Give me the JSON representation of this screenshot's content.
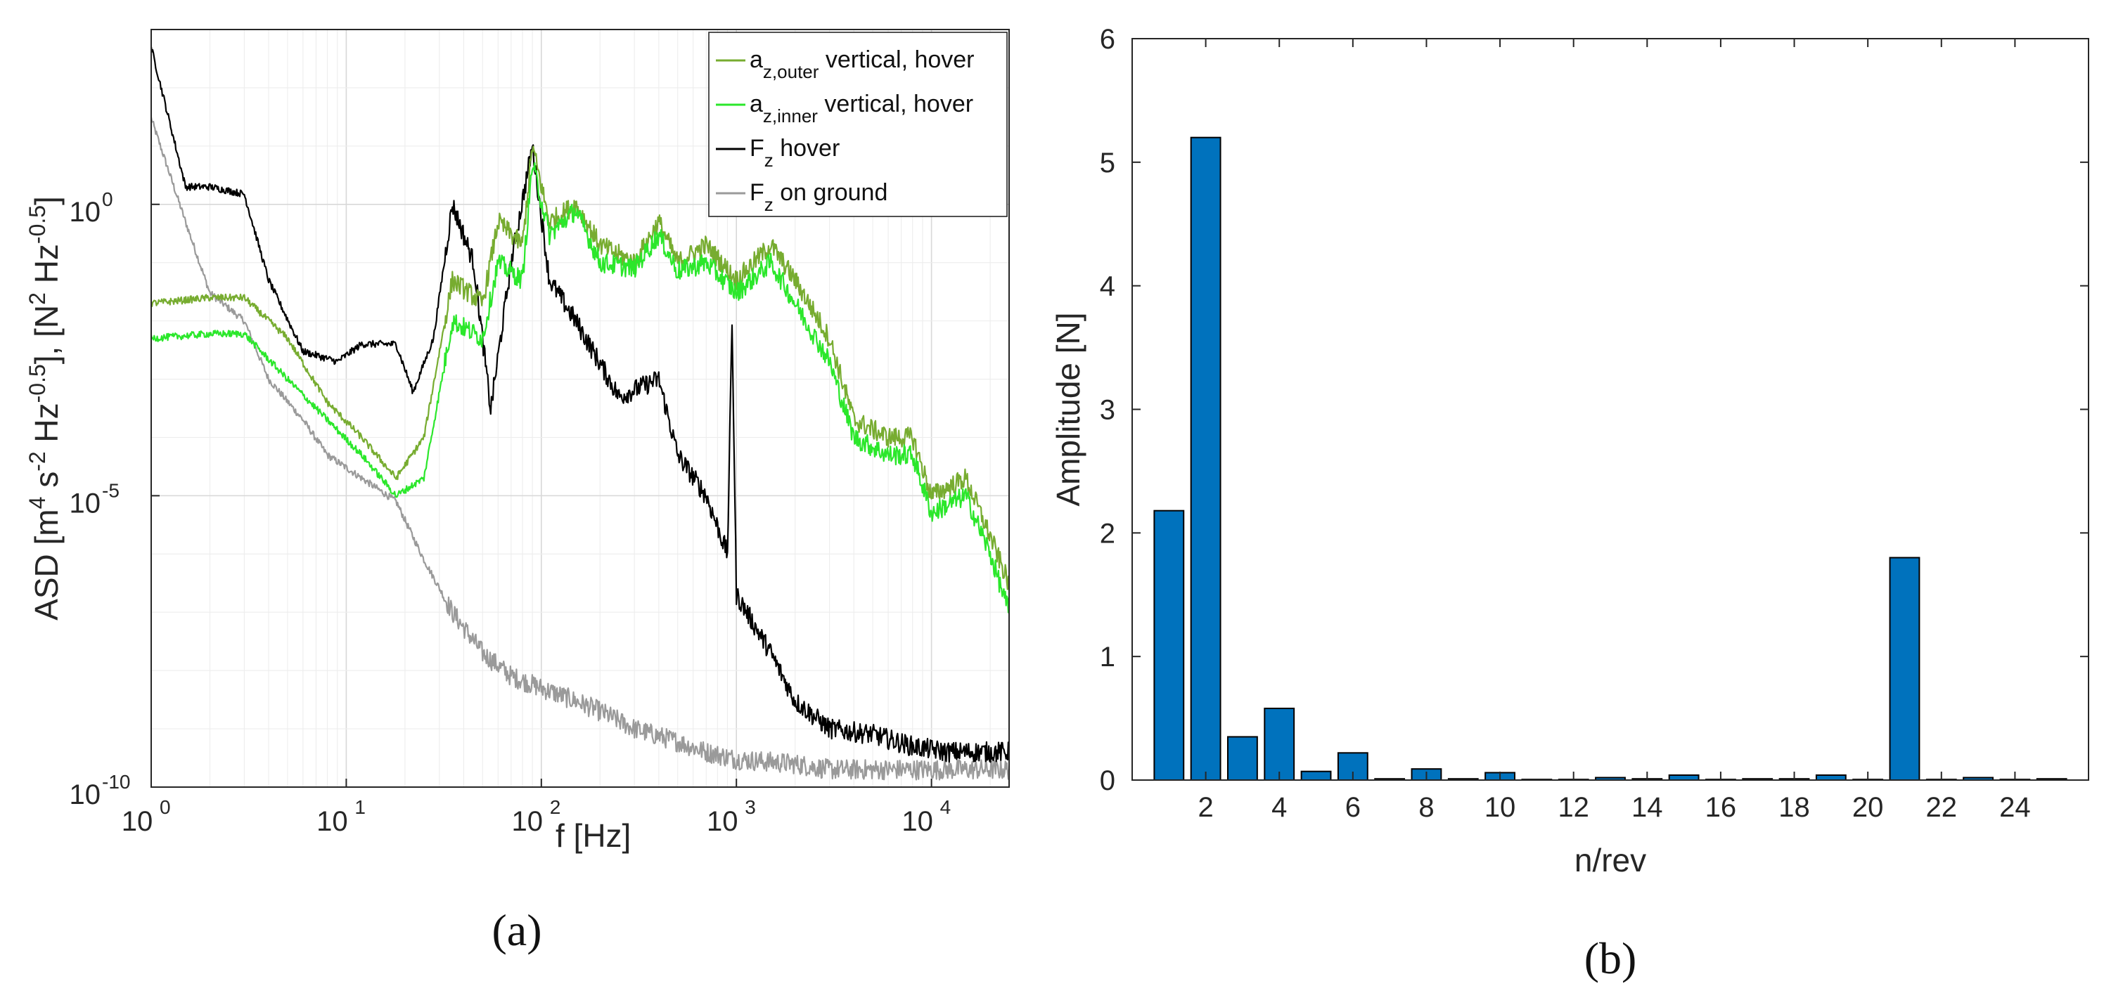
{
  "chart_data": [
    {
      "panel": "(a)",
      "type": "line",
      "xscale": "log",
      "yscale": "log",
      "xlim": [
        1,
        25000
      ],
      "ylim": [
        1e-10,
        1000
      ],
      "xlabel": "f [Hz]",
      "ylabel": "ASD [m^4 s^-2 Hz^-0.5], [N^2 Hz^-0.5]",
      "x_tick_labels": [
        "10^0",
        "10^1",
        "10^2",
        "10^3",
        "10^4"
      ],
      "y_tick_labels": [
        "10^-10",
        "10^-5",
        "10^0"
      ],
      "grid": true,
      "legend_position": "top-right",
      "series": [
        {
          "name": "a_z,outer vertical, hover",
          "label_main": "a",
          "label_sub": "z,outer",
          "label_rest": " vertical, hover",
          "color": "#77ac30",
          "x": [
            1,
            2,
            3,
            5,
            8,
            12,
            18,
            25,
            35,
            50,
            60,
            80,
            90,
            110,
            150,
            200,
            300,
            400,
            500,
            700,
            1000,
            1500,
            2000,
            3000,
            4000,
            6000,
            8000,
            10000,
            15000,
            20000,
            25000
          ],
          "y": [
            0.02,
            0.025,
            0.025,
            0.005,
            0.0004,
            0.0001,
            2e-05,
            0.0001,
            0.05,
            0.02,
            0.5,
            0.2,
            10,
            0.5,
            1.0,
            0.2,
            0.1,
            0.5,
            0.1,
            0.2,
            0.05,
            0.2,
            0.05,
            0.005,
            0.0002,
            0.0001,
            0.0001,
            1e-05,
            2e-05,
            2e-06,
            3e-07
          ]
        },
        {
          "name": "a_z,inner vertical, hover",
          "label_main": "a",
          "label_sub": "z,inner",
          "label_rest": " vertical, hover",
          "color": "#2be72b",
          "x": [
            1,
            2,
            3,
            5,
            8,
            12,
            18,
            25,
            35,
            50,
            60,
            80,
            90,
            110,
            150,
            200,
            300,
            400,
            500,
            700,
            1000,
            1500,
            2000,
            3000,
            4000,
            6000,
            8000,
            10000,
            15000,
            20000,
            25000
          ],
          "y": [
            0.005,
            0.006,
            0.006,
            0.001,
            0.0002,
            5e-05,
            1e-05,
            2e-05,
            0.01,
            0.005,
            0.1,
            0.05,
            5,
            0.3,
            0.8,
            0.1,
            0.08,
            0.3,
            0.07,
            0.1,
            0.03,
            0.1,
            0.02,
            0.002,
            0.0001,
            5e-05,
            5e-05,
            5e-06,
            1e-05,
            1e-06,
            1e-07
          ]
        },
        {
          "name": "F_z hover",
          "label_main": "F",
          "label_sub": "z",
          "label_rest": " hover",
          "color": "#000000",
          "x": [
            1,
            1.5,
            2,
            3,
            4,
            6,
            9,
            12,
            18,
            22,
            28,
            35,
            45,
            55,
            70,
            90,
            110,
            150,
            250,
            400,
            500,
            700,
            900,
            950,
            1000,
            1500,
            2000,
            3000,
            5000,
            8000,
            12000,
            18000,
            25000
          ],
          "y": [
            500,
            2,
            2,
            1.5,
            0.05,
            0.003,
            0.002,
            0.004,
            0.004,
            0.0006,
            0.005,
            1,
            0.1,
            0.0003,
            0.1,
            10,
            0.05,
            0.01,
            0.0005,
            0.001,
            5e-05,
            1e-05,
            1e-06,
            0.01,
            2e-07,
            2e-08,
            3e-09,
            1e-09,
            8e-10,
            5e-10,
            4e-10,
            4e-10,
            4e-10
          ]
        },
        {
          "name": "F_z on ground",
          "label_main": "F",
          "label_sub": "z",
          "label_rest": " on ground",
          "color": "#9a9a9a",
          "x": [
            1,
            1.5,
            2,
            3,
            4,
            6,
            8,
            12,
            18,
            25,
            35,
            50,
            70,
            100,
            150,
            200,
            300,
            500,
            700,
            1000,
            2000,
            3000,
            5000,
            8000,
            12000,
            18000,
            25000
          ],
          "y": [
            30,
            0.5,
            0.03,
            0.01,
            0.001,
            0.0002,
            5e-05,
            2e-05,
            8e-06,
            8e-07,
            1e-07,
            2e-08,
            8e-09,
            5e-09,
            3e-09,
            2e-09,
            1e-09,
            6e-10,
            4e-10,
            3e-10,
            2.5e-10,
            2e-10,
            2e-10,
            2e-10,
            2e-10,
            2e-10,
            2e-10
          ]
        }
      ]
    },
    {
      "panel": "(b)",
      "type": "bar",
      "xlabel": "n/rev",
      "ylabel": "Amplitude [N]",
      "xlim": [
        0,
        26
      ],
      "ylim": [
        0,
        6
      ],
      "x_ticks": [
        2,
        4,
        6,
        8,
        10,
        12,
        14,
        16,
        18,
        20,
        22,
        24
      ],
      "y_ticks": [
        0,
        1,
        2,
        3,
        4,
        5,
        6
      ],
      "grid": false,
      "bar_color": "#0072bd",
      "categories": [
        1,
        2,
        3,
        4,
        5,
        6,
        7,
        8,
        9,
        10,
        11,
        12,
        13,
        14,
        15,
        16,
        17,
        18,
        19,
        20,
        21,
        22,
        23,
        24,
        25
      ],
      "values": [
        2.18,
        5.2,
        0.35,
        0.58,
        0.07,
        0.22,
        0.01,
        0.09,
        0.01,
        0.06,
        0.005,
        0.005,
        0.02,
        0.01,
        0.04,
        0.005,
        0.01,
        0.01,
        0.04,
        0.005,
        1.8,
        0.005,
        0.02,
        0.005,
        0.01
      ]
    }
  ],
  "captions": {
    "a": "(a)",
    "b": "(b)"
  }
}
